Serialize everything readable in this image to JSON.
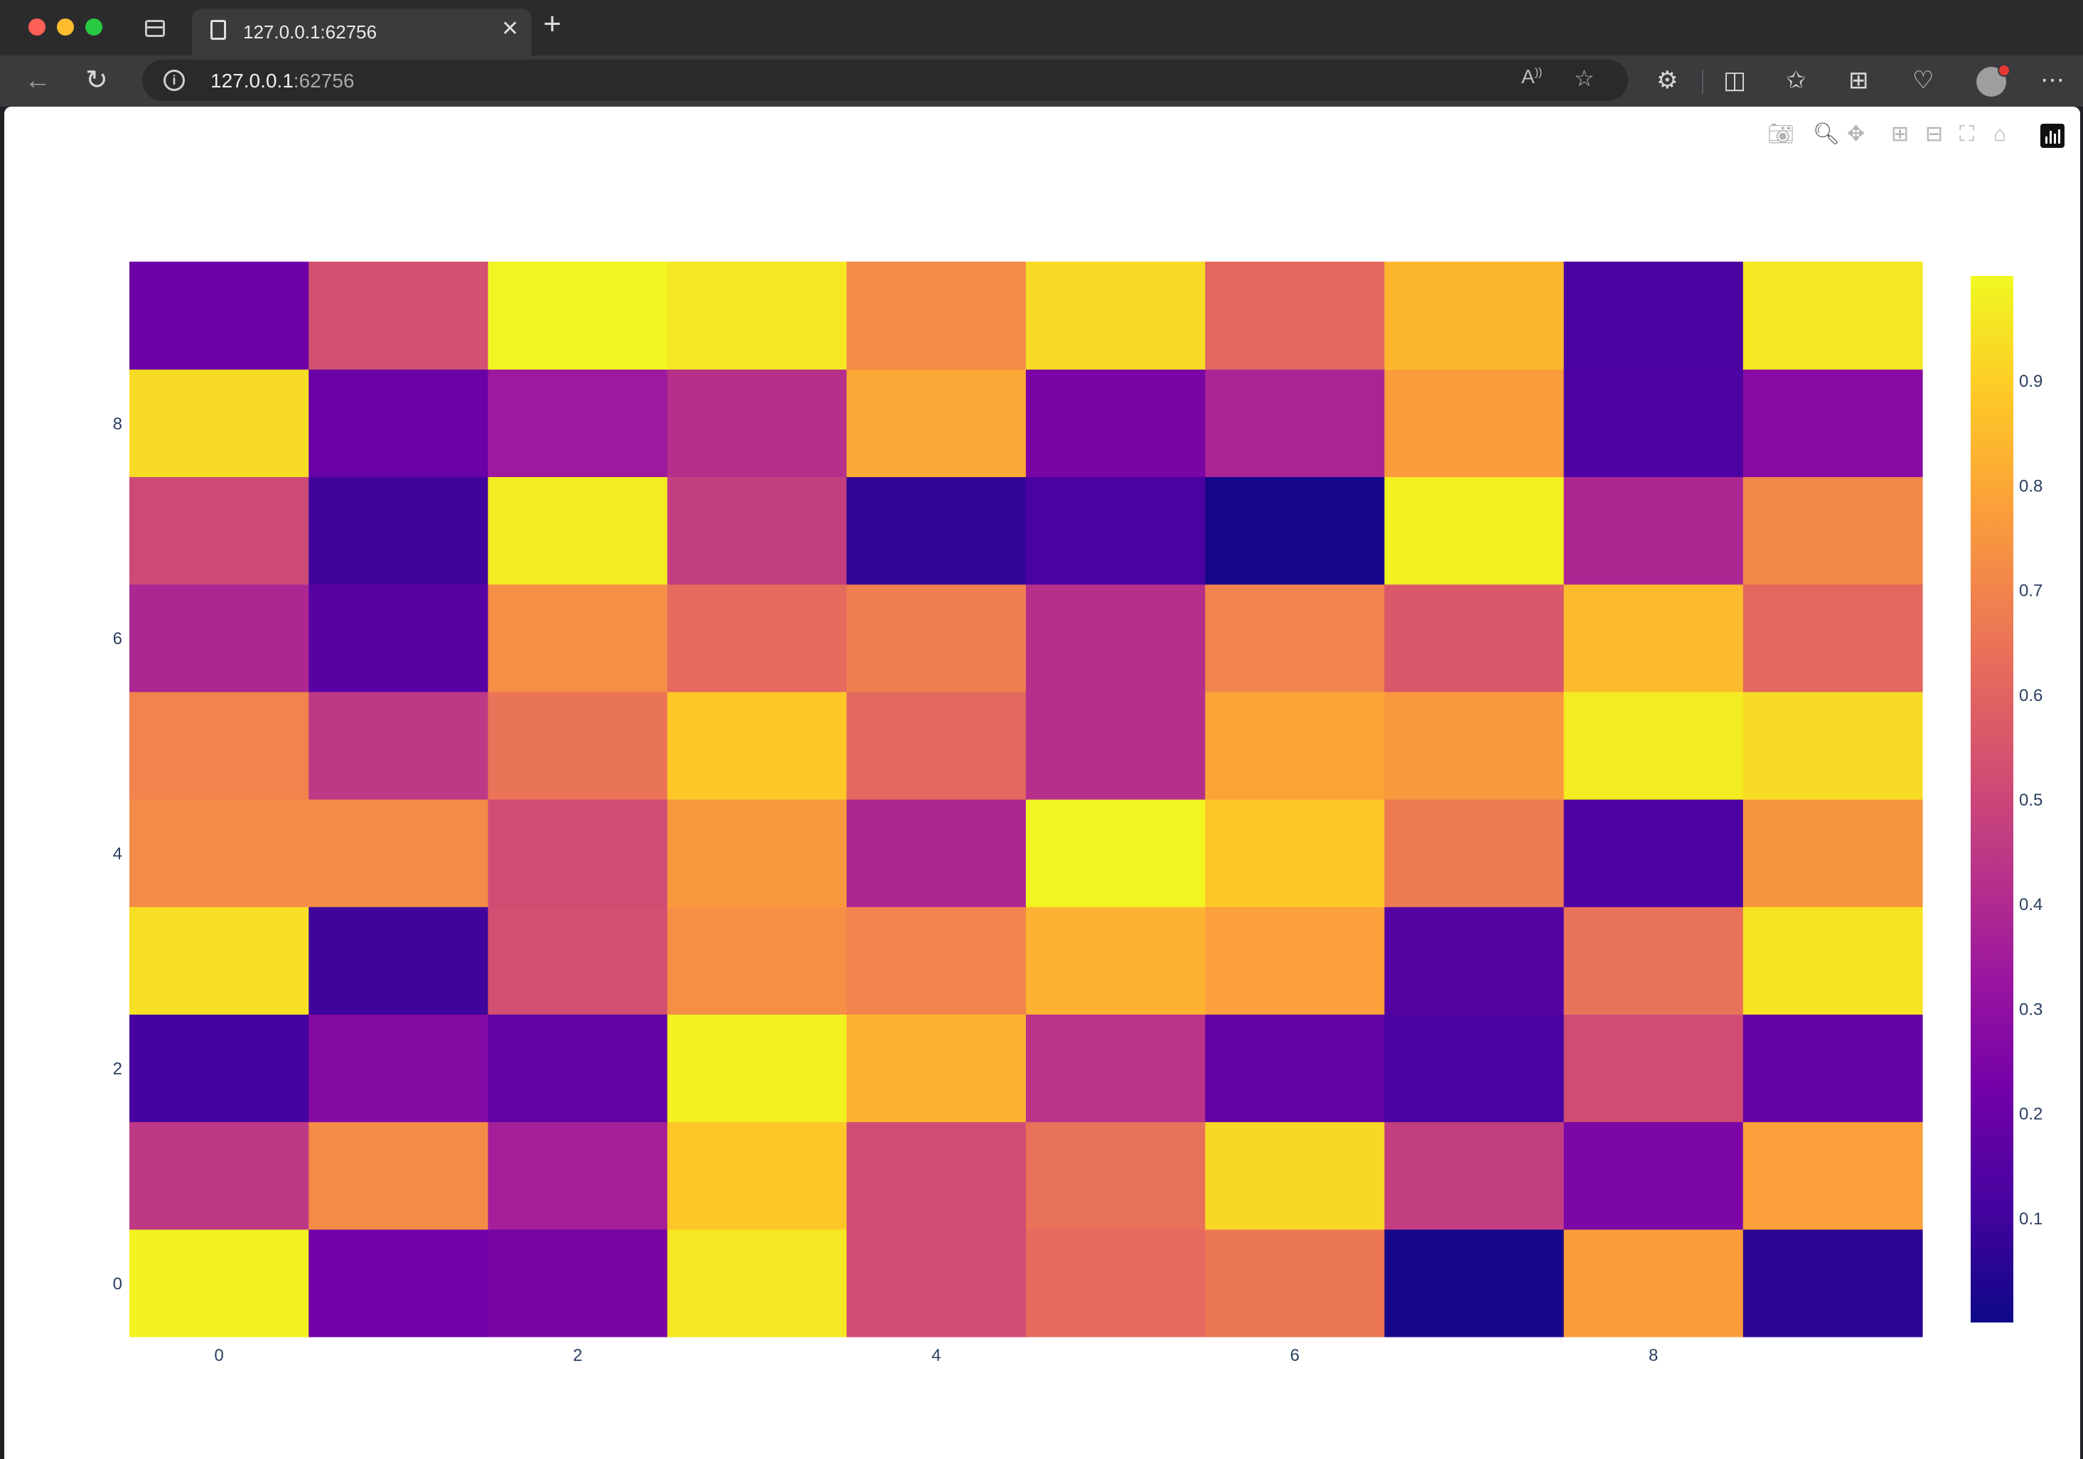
{
  "browser": {
    "tab_title": "127.0.0.1:62756",
    "url_host": "127.0.0.1",
    "url_port": ":62756",
    "icons": [
      "sidebar-icon",
      "page-icon",
      "close-icon",
      "plus-icon",
      "back-icon",
      "reload-icon",
      "info-icon",
      "read-aloud-icon",
      "favorite-star-icon",
      "extensions-icon",
      "split-screen-icon",
      "favorites-icon",
      "collections-icon",
      "browser-essentials-icon",
      "profile-avatar-icon",
      "more-icon"
    ]
  },
  "modebar": {
    "buttons": [
      "camera-icon",
      "zoom-icon",
      "pan-icon",
      "zoom-in-icon",
      "zoom-out-icon",
      "autoscale-icon",
      "reset-axes-icon",
      "plotly-logo-icon"
    ]
  },
  "colors": {
    "plasma": [
      "#0d0887",
      "#46039f",
      "#7201a8",
      "#9c179e",
      "#bd3786",
      "#d8576b",
      "#ed7953",
      "#fb9f3a",
      "#fdca26",
      "#f0f921"
    ]
  },
  "chart_data": {
    "type": "heatmap",
    "title": "",
    "xlabel": "",
    "ylabel": "",
    "colorscale": "Plasma",
    "x": [
      0,
      1,
      2,
      3,
      4,
      5,
      6,
      7,
      8,
      9
    ],
    "y": [
      0,
      1,
      2,
      3,
      4,
      5,
      6,
      7,
      8,
      9
    ],
    "x_tick_labels": [
      "0",
      "2",
      "4",
      "6",
      "8"
    ],
    "x_tick_values": [
      0,
      2,
      4,
      6,
      8
    ],
    "y_tick_labels": [
      "0",
      "2",
      "4",
      "6",
      "8"
    ],
    "y_tick_values": [
      0,
      2,
      4,
      6,
      8
    ],
    "xlim": [
      -0.5,
      9.5
    ],
    "ylim": [
      -0.5,
      9.5
    ],
    "zmin": 0.0,
    "zmax": 1.0,
    "colorbar_tick_labels": [
      "0.1",
      "0.2",
      "0.3",
      "0.4",
      "0.5",
      "0.6",
      "0.7",
      "0.8",
      "0.9"
    ],
    "colorbar_tick_values": [
      0.1,
      0.2,
      0.3,
      0.4,
      0.5,
      0.6,
      0.7,
      0.8,
      0.9
    ],
    "z": [
      [
        0.98,
        0.22,
        0.24,
        0.96,
        0.52,
        0.62,
        0.66,
        0.02,
        0.77,
        0.06
      ],
      [
        0.45,
        0.72,
        0.36,
        0.88,
        0.52,
        0.64,
        0.92,
        0.47,
        0.25,
        0.78
      ],
      [
        0.11,
        0.27,
        0.18,
        0.98,
        0.83,
        0.43,
        0.19,
        0.12,
        0.52,
        0.19
      ],
      [
        0.94,
        0.1,
        0.53,
        0.73,
        0.7,
        0.83,
        0.78,
        0.15,
        0.64,
        0.95
      ],
      [
        0.72,
        0.72,
        0.52,
        0.76,
        0.39,
        0.99,
        0.88,
        0.67,
        0.13,
        0.75
      ],
      [
        0.7,
        0.45,
        0.65,
        0.88,
        0.61,
        0.42,
        0.79,
        0.76,
        0.97,
        0.93
      ],
      [
        0.39,
        0.16,
        0.73,
        0.62,
        0.68,
        0.42,
        0.7,
        0.56,
        0.85,
        0.61
      ],
      [
        0.51,
        0.1,
        0.97,
        0.47,
        0.07,
        0.12,
        0.02,
        0.98,
        0.39,
        0.71
      ],
      [
        0.93,
        0.2,
        0.34,
        0.42,
        0.8,
        0.24,
        0.38,
        0.77,
        0.13,
        0.28
      ],
      [
        0.21,
        0.53,
        0.99,
        0.96,
        0.72,
        0.93,
        0.61,
        0.84,
        0.12,
        0.96
      ]
    ]
  }
}
